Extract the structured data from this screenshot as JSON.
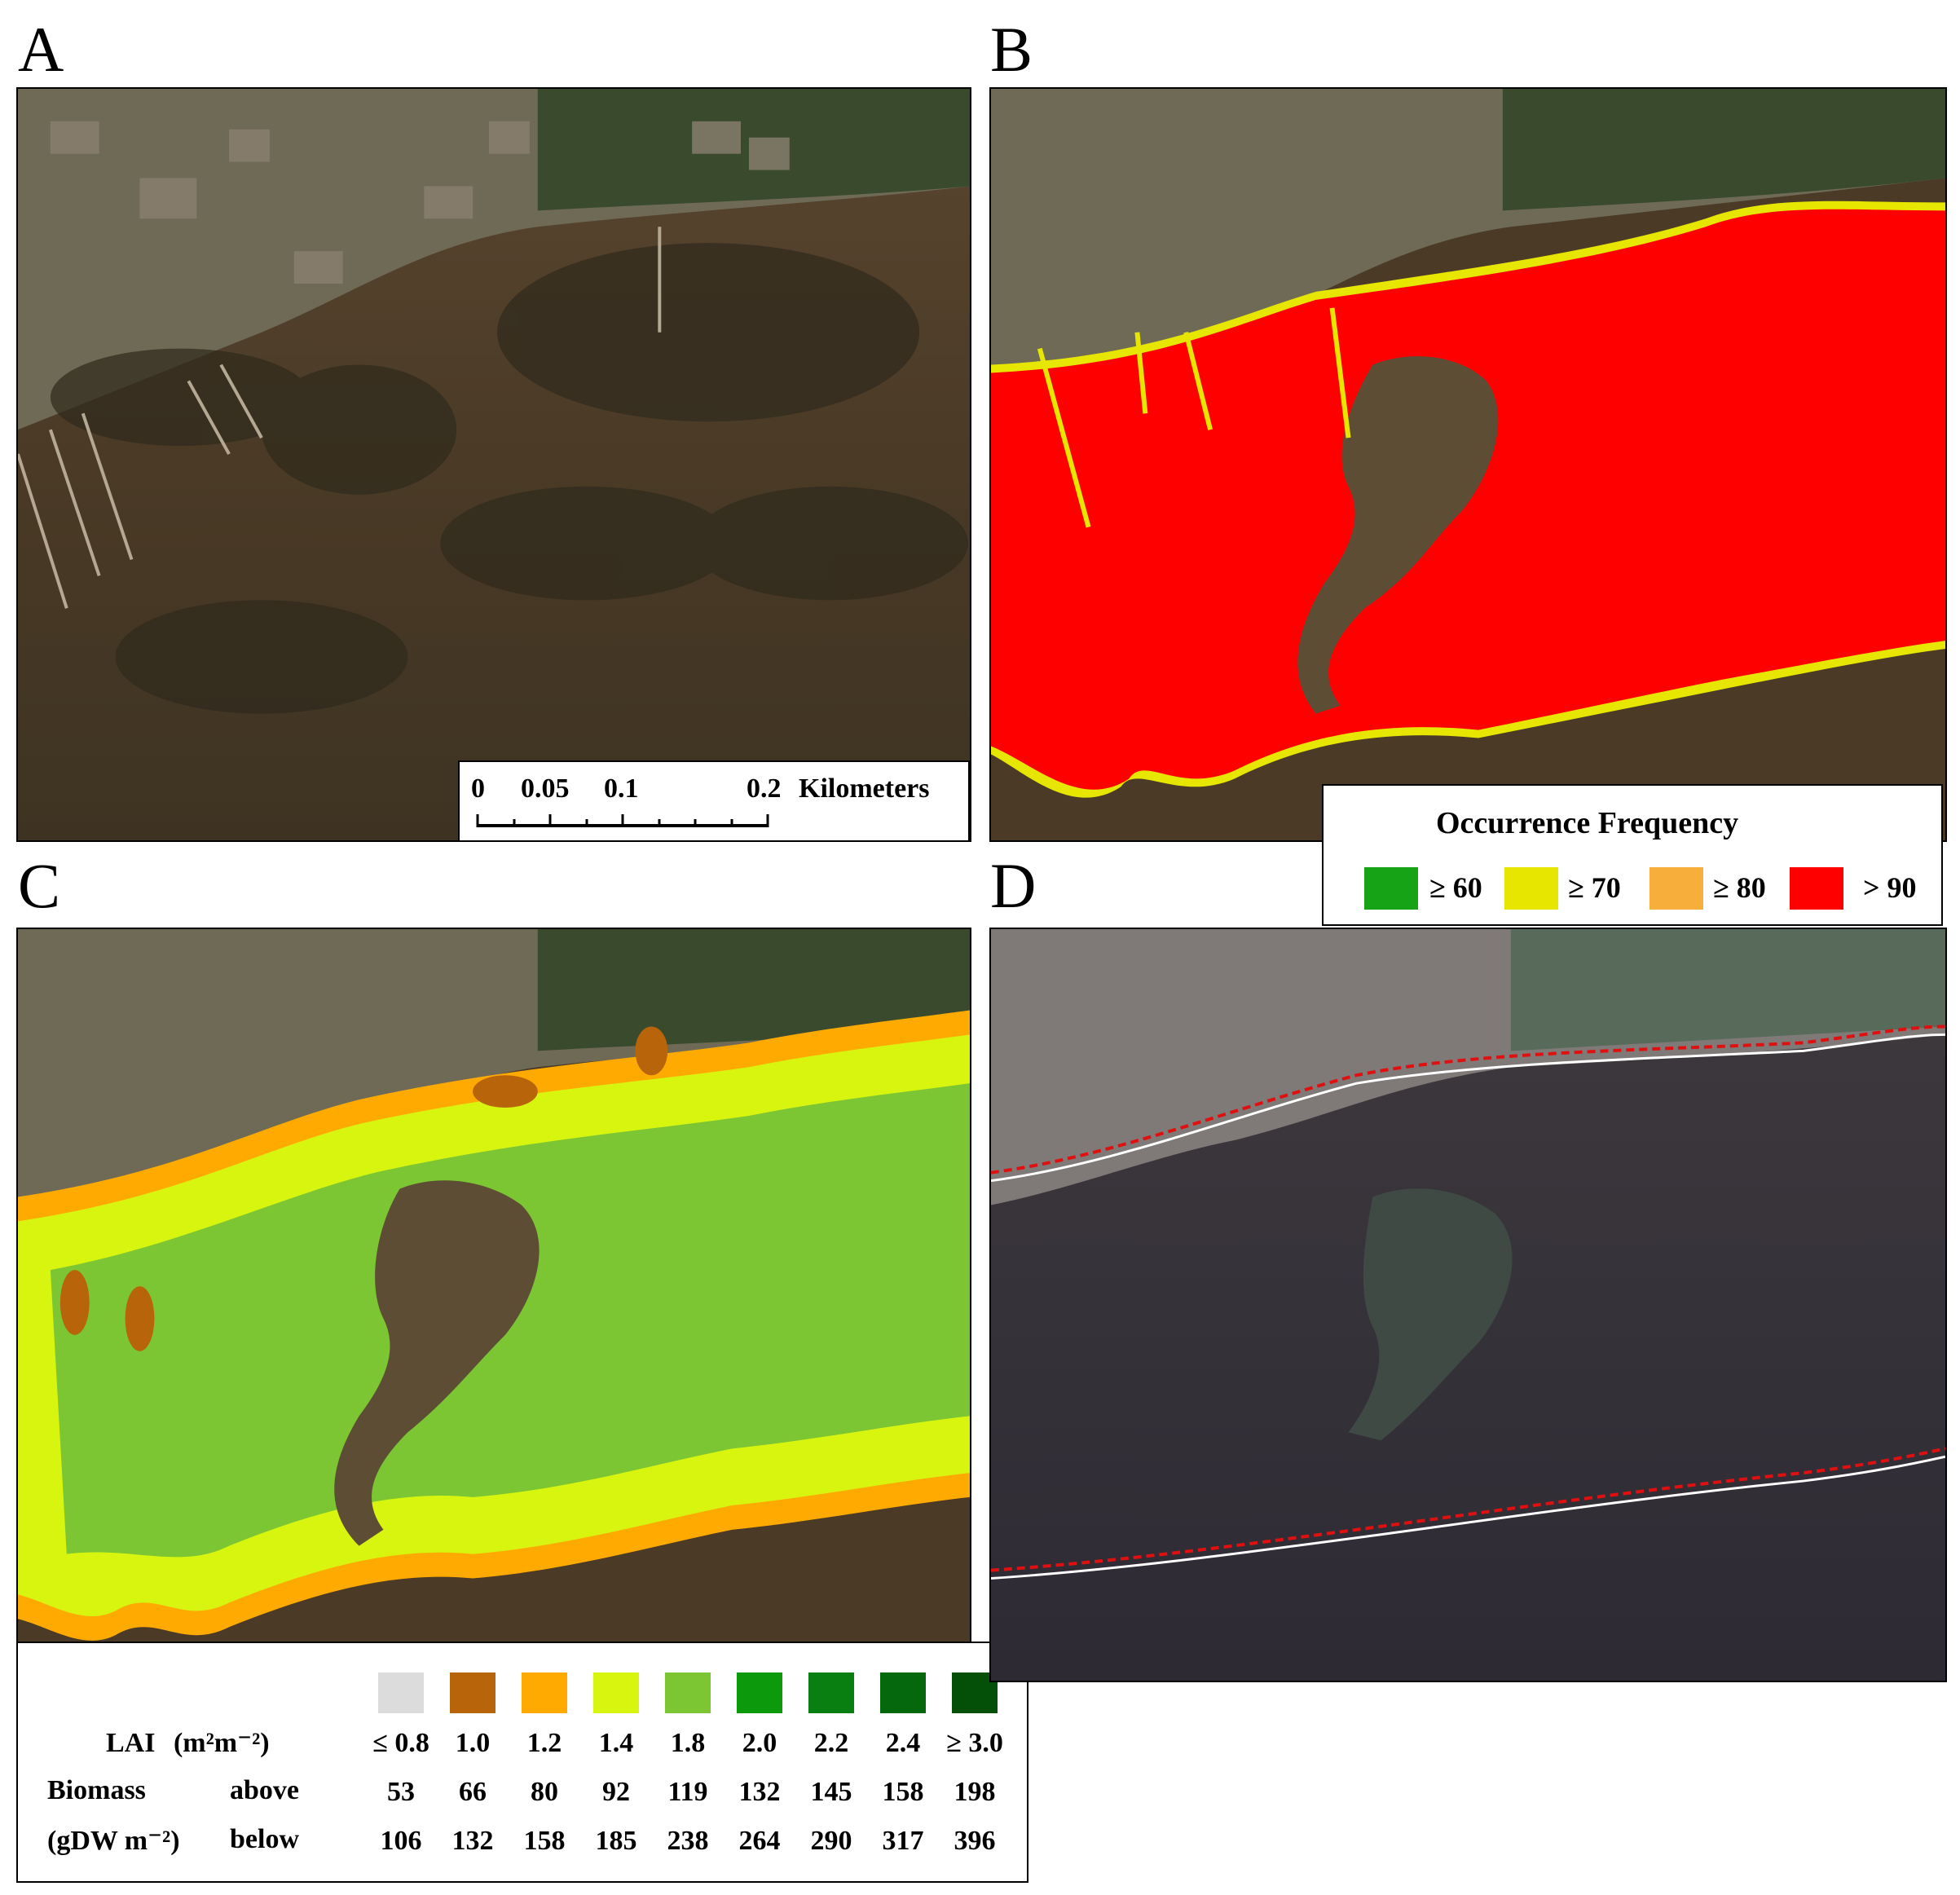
{
  "panels": {
    "a": {
      "letter": "A"
    },
    "b": {
      "letter": "B"
    },
    "c": {
      "letter": "C"
    },
    "d": {
      "letter": "D"
    }
  },
  "scale_bar": {
    "ticks": [
      "0",
      "0.05",
      "0.1",
      "0.2"
    ],
    "unit": "Kilometers"
  },
  "occurrence_legend": {
    "title": "Occurrence Frequency",
    "items": [
      {
        "label": "≥ 60",
        "color": "#16a316"
      },
      {
        "label": "≥ 70",
        "color": "#e6e600"
      },
      {
        "label": "≥ 80",
        "color": "#f7ae3a"
      },
      {
        "label": "> 90",
        "color": "#ff0000"
      }
    ]
  },
  "lai_legend": {
    "lai_label": "LAI",
    "lai_unit": "(m²m⁻²)",
    "biomass_label": "Biomass",
    "biomass_unit": "(gDW m⁻²)",
    "above_label": "above",
    "below_label": "below",
    "colors": [
      "#dcdcdc",
      "#b8640a",
      "#ffaa00",
      "#d8f510",
      "#7cc634",
      "#0c9a0c",
      "#087f10",
      "#06680c",
      "#045008"
    ],
    "lai": [
      "≤ 0.8",
      "1.0",
      "1.2",
      "1.4",
      "1.8",
      "2.0",
      "2.2",
      "2.4",
      "≥ 3.0"
    ],
    "above": [
      "53",
      "66",
      "80",
      "92",
      "119",
      "132",
      "145",
      "158",
      "198"
    ],
    "below": [
      "106",
      "132",
      "158",
      "185",
      "238",
      "264",
      "290",
      "317",
      "396"
    ]
  }
}
